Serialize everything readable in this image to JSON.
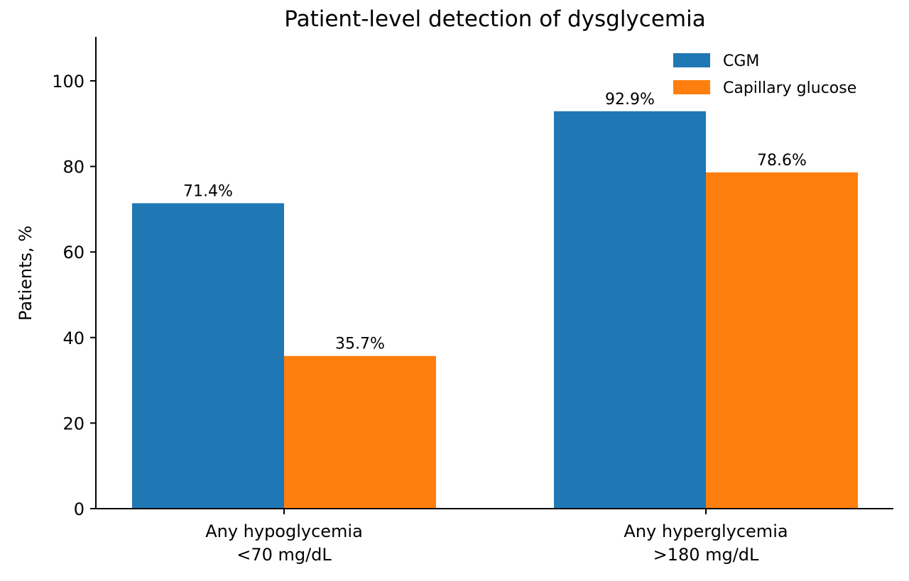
{
  "chart_data": {
    "type": "bar",
    "title": "Patient-level detection of dysglycemia",
    "xlabel": "",
    "ylabel": "Patients, %",
    "ylim": [
      0,
      110
    ],
    "yticks": [
      0,
      20,
      40,
      60,
      80,
      100
    ],
    "categories": [
      [
        "Any hypoglycemia",
        "<70 mg/dL"
      ],
      [
        "Any hyperglycemia",
        ">180 mg/dL"
      ]
    ],
    "series": [
      {
        "name": "CGM",
        "color": "#1f77b4",
        "values": [
          71.4,
          92.9
        ],
        "labels": [
          "71.4%",
          "92.9%"
        ]
      },
      {
        "name": "Capillary glucose",
        "color": "#ff7f0e",
        "values": [
          35.7,
          78.6
        ],
        "labels": [
          "35.7%",
          "78.6%"
        ]
      }
    ],
    "legend": {
      "position": "top-right"
    },
    "grid": false
  }
}
